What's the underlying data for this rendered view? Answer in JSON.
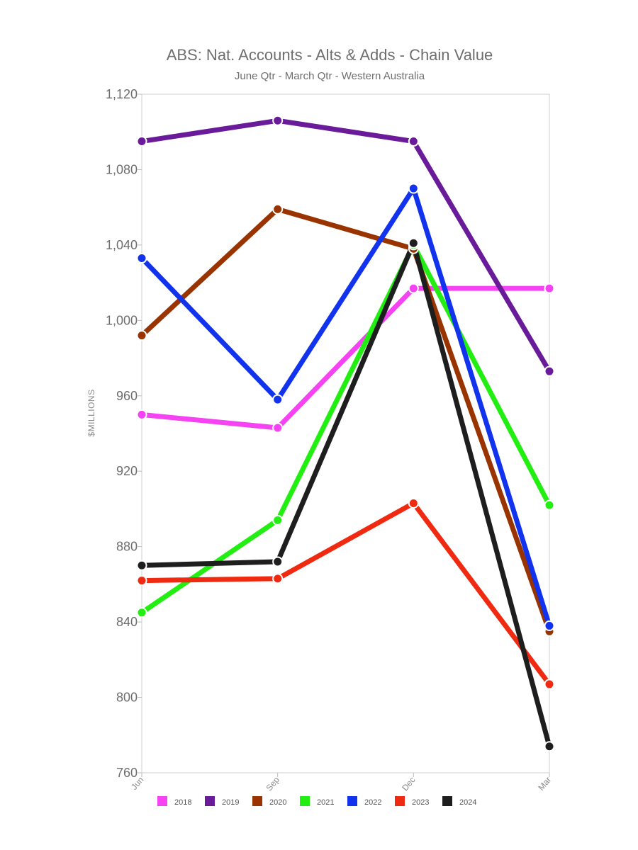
{
  "chart_data": {
    "type": "line",
    "title": "ABS: Nat. Accounts - Alts & Adds - Chain Value",
    "subtitle": "June Qtr - March Qtr - Western Australia",
    "xlabel": "",
    "ylabel": "$MILLIONS",
    "categories": [
      "Jun",
      "Sep",
      "Dec",
      "Mar"
    ],
    "ylim": [
      760,
      1120
    ],
    "yticks": [
      760,
      800,
      840,
      880,
      920,
      960,
      1000,
      1040,
      1080,
      1120
    ],
    "ytick_labels": [
      "760",
      "800",
      "840",
      "880",
      "920",
      "960",
      "1,000",
      "1,040",
      "1,080",
      "1,120"
    ],
    "grid": false,
    "legend_position": "bottom",
    "series": [
      {
        "name": "2018",
        "color": "#f542f2",
        "values": [
          950,
          943,
          1017,
          1017
        ]
      },
      {
        "name": "2019",
        "color": "#6a1b9a",
        "values": [
          1095,
          1106,
          1095,
          973
        ]
      },
      {
        "name": "2020",
        "color": "#993300",
        "values": [
          992,
          1059,
          1038,
          835
        ]
      },
      {
        "name": "2021",
        "color": "#22ee11",
        "values": [
          845,
          894,
          1040,
          902
        ]
      },
      {
        "name": "2022",
        "color": "#1133ee",
        "values": [
          1033,
          958,
          1070,
          838
        ]
      },
      {
        "name": "2023",
        "color": "#f02a10",
        "values": [
          862,
          863,
          903,
          807
        ]
      },
      {
        "name": "2024",
        "color": "#1e1e1e",
        "values": [
          870,
          872,
          1041,
          774
        ]
      }
    ]
  }
}
